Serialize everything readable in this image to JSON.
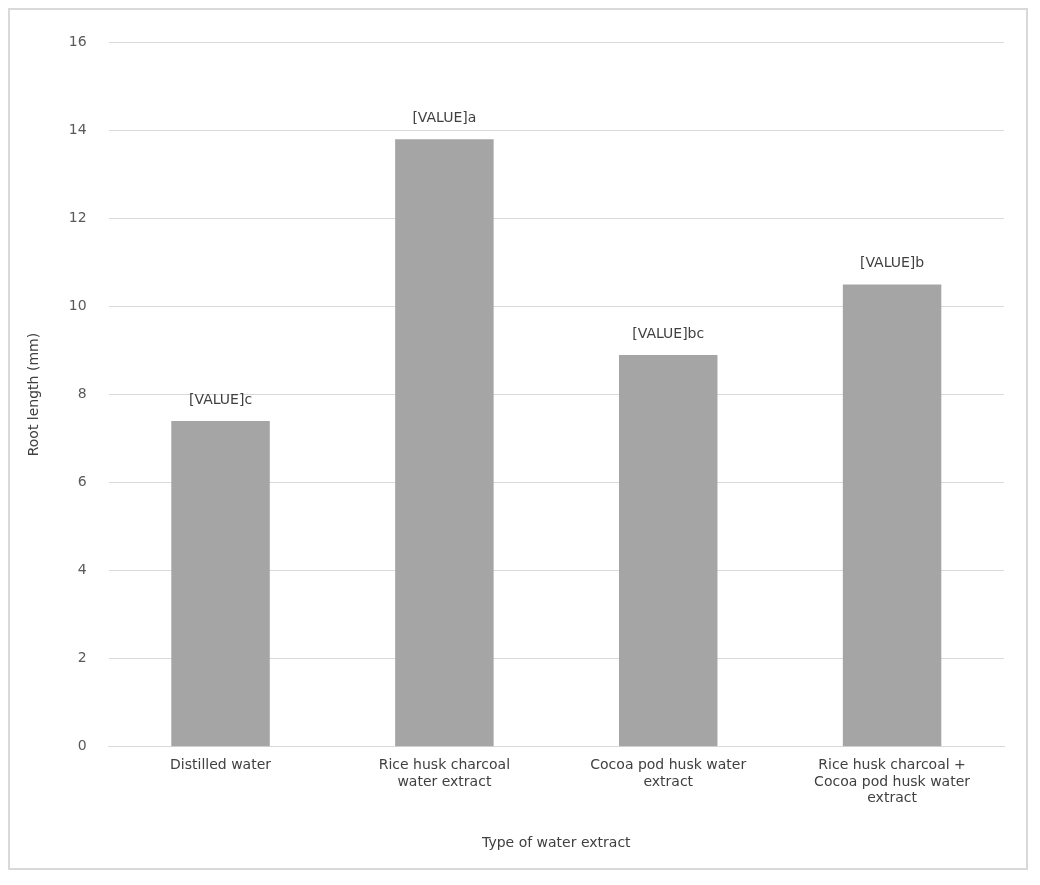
{
  "chart_data": {
    "type": "bar",
    "xlabel": "Type of water extract",
    "ylabel": "Root length (mm)",
    "categories": [
      "Distilled water",
      "Rice husk charcoal water extract",
      "Cocoa pod husk water extract",
      "Rice husk charcoal + Cocoa pod husk water extract"
    ],
    "values": [
      7.4,
      13.8,
      8.9,
      10.5
    ],
    "value_labels": [
      "[VALUE]c",
      "[VALUE]a",
      "[VALUE]bc",
      "[VALUE]b"
    ],
    "color": "#a5a5a5",
    "ylim": [
      0,
      16
    ],
    "yticks": [
      0,
      2,
      4,
      6,
      8,
      10,
      12,
      14,
      16
    ],
    "grid": "y",
    "legend": false
  }
}
